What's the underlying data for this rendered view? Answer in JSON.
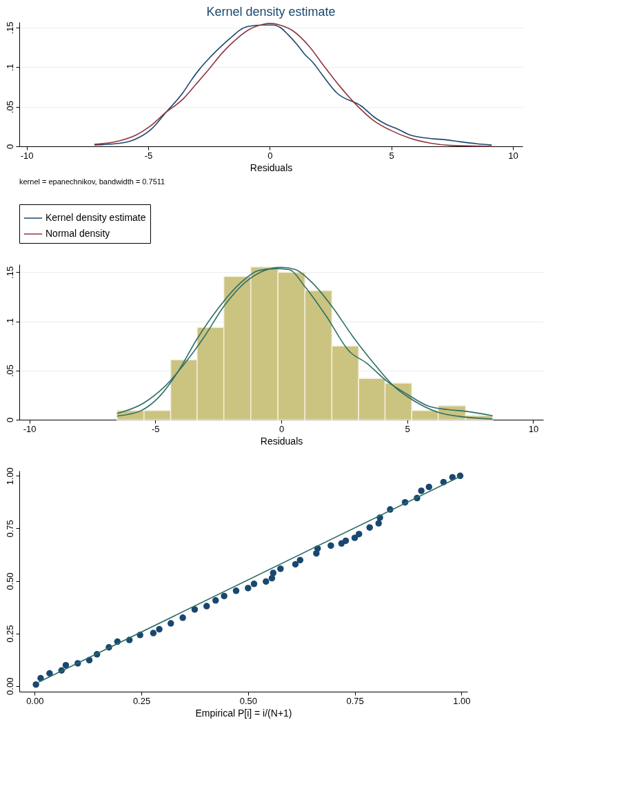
{
  "chart_data": [
    {
      "type": "line",
      "title": "Kernel density estimate",
      "xlabel": "Residuals",
      "xlim": [
        -10.3,
        10.4
      ],
      "ylim": [
        0,
        0.157
      ],
      "xticks": [
        -10,
        -5,
        0,
        5,
        10
      ],
      "yticks": [
        {
          "value": 0,
          "label": "0"
        },
        {
          "value": 0.05,
          "label": ".05"
        },
        {
          "value": 0.1,
          "label": ".1"
        },
        {
          "value": 0.15,
          "label": ".15"
        }
      ],
      "grid": "y",
      "legend": "bottom",
      "annotations": [
        "kernel = epanechnikov, bandwidth = 0.7511"
      ],
      "series": [
        {
          "name": "Kernel density estimate",
          "color": "#1a476f",
          "x": [
            -7.21,
            -6.25,
            -5.91,
            -5.56,
            -4.88,
            -4.26,
            -3.57,
            -3.23,
            -2.88,
            -2.54,
            -1.92,
            -1.51,
            -1.24,
            -0.89,
            -0.27,
            0.14,
            0.44,
            0.76,
            1.1,
            1.44,
            1.79,
            2.13,
            2.75,
            3.78,
            4.33,
            4.81,
            5.29,
            5.77,
            6.18,
            6.73,
            7.14,
            7.83,
            8.52,
            9.13
          ],
          "values": [
            0.0016,
            0.0037,
            0.0053,
            0.0086,
            0.0214,
            0.0432,
            0.0678,
            0.0834,
            0.0978,
            0.1097,
            0.1286,
            0.1397,
            0.1467,
            0.1516,
            0.1533,
            0.1533,
            0.15,
            0.141,
            0.1295,
            0.1163,
            0.1056,
            0.0916,
            0.0678,
            0.0506,
            0.0362,
            0.0275,
            0.0214,
            0.0144,
            0.0115,
            0.0095,
            0.0086,
            0.0058,
            0.0033,
            0.0016
          ]
        },
        {
          "name": "Normal density",
          "color": "#90353b",
          "x": [
            -7.21,
            -6.18,
            -5.49,
            -4.95,
            -4.26,
            -3.57,
            -3.02,
            -2.47,
            -1.92,
            -1.37,
            -0.82,
            -0.27,
            0,
            0.41,
            0.96,
            1.65,
            2.2,
            2.88,
            3.57,
            4.26,
            4.95,
            5.77,
            6.59,
            7.42,
            9.13
          ],
          "values": [
            0.0025,
            0.007,
            0.0144,
            0.0247,
            0.0432,
            0.0596,
            0.0789,
            0.0986,
            0.1192,
            0.1356,
            0.148,
            0.1541,
            0.1554,
            0.1533,
            0.1459,
            0.1254,
            0.1028,
            0.076,
            0.0522,
            0.0329,
            0.0206,
            0.0103,
            0.0041,
            0.0012,
            0.0
          ]
        }
      ]
    },
    {
      "type": "histogram",
      "xlabel": "Residuals",
      "xlim": [
        -10.4,
        10.4
      ],
      "ylim": [
        0,
        0.158
      ],
      "color": "#cbc380",
      "xticks": [
        -10,
        -5,
        0,
        5,
        10
      ],
      "yticks": [
        {
          "value": 0,
          "label": "0"
        },
        {
          "value": 0.05,
          "label": ".05"
        },
        {
          "value": 0.1,
          "label": ".1"
        },
        {
          "value": 0.15,
          "label": ".15"
        }
      ],
      "grid": "y",
      "bins": [
        -6.52,
        -5.45,
        -4.39,
        -3.34,
        -2.28,
        -1.21,
        -0.13,
        0.94,
        2.01,
        3.07,
        4.12,
        5.18,
        6.23,
        7.32,
        8.39
      ],
      "values": [
        0.0093,
        0.0093,
        0.061,
        0.094,
        0.1457,
        0.1553,
        0.15,
        0.1313,
        0.075,
        0.042,
        0.0373,
        0.0093,
        0.0143,
        0.0043
      ],
      "series": [
        {
          "type": "line",
          "color": "#2d6d66",
          "x": [
            -6.52,
            -5.61,
            -4.81,
            -4.13,
            -3.33,
            -2.52,
            -1.58,
            -0.91,
            -0.24,
            0.3,
            0.97,
            1.77,
            2.71,
            3.38,
            4.19,
            4.99,
            5.8,
            6.6,
            7.28,
            8.39
          ],
          "values": [
            0.0037,
            0.0087,
            0.0243,
            0.0477,
            0.0827,
            0.1127,
            0.14,
            0.1517,
            0.1537,
            0.1527,
            0.1343,
            0.106,
            0.0693,
            0.0577,
            0.0393,
            0.026,
            0.0143,
            0.0103,
            0.0087,
            0.004
          ]
        },
        {
          "type": "line",
          "color": "#2d6d66",
          "x": [
            -6.52,
            -5.48,
            -4.67,
            -3.87,
            -3.06,
            -2.26,
            -1.45,
            -0.64,
            0,
            0.56,
            1.23,
            2.04,
            2.85,
            3.66,
            4.46,
            5.26,
            6.2,
            7.28,
            8.39
          ],
          "values": [
            0.0063,
            0.0167,
            0.0327,
            0.056,
            0.0843,
            0.116,
            0.1393,
            0.152,
            0.155,
            0.1527,
            0.1393,
            0.1143,
            0.0843,
            0.0577,
            0.0343,
            0.0193,
            0.0077,
            0.0027,
            0.0007
          ]
        }
      ]
    },
    {
      "type": "scatter",
      "xlabel": "Empirical P[i] = i/(N+1)",
      "xlim": [
        -0.036,
        1.014
      ],
      "ylim": [
        -0.027,
        1.024
      ],
      "xticks": [
        {
          "value": 0,
          "label": "0.00"
        },
        {
          "value": 0.25,
          "label": "0.25"
        },
        {
          "value": 0.5,
          "label": "0.50"
        },
        {
          "value": 0.75,
          "label": "0.75"
        },
        {
          "value": 1,
          "label": "1.00"
        }
      ],
      "yticks": [
        {
          "value": 0,
          "label": "0.00"
        },
        {
          "value": 0.25,
          "label": "0.25"
        },
        {
          "value": 0.5,
          "label": "0.50"
        },
        {
          "value": 0.75,
          "label": "0.75"
        },
        {
          "value": 1,
          "label": "1.00"
        }
      ],
      "series": [
        {
          "type": "scatter",
          "marker": "circle",
          "color": "#1a476f",
          "x": [
            0.003,
            0.014,
            0.035,
            0.063,
            0.073,
            0.101,
            0.128,
            0.146,
            0.174,
            0.194,
            0.222,
            0.247,
            0.278,
            0.292,
            0.319,
            0.347,
            0.375,
            0.403,
            0.424,
            0.444,
            0.472,
            0.5,
            0.514,
            0.542,
            0.556,
            0.559,
            0.576,
            0.611,
            0.622,
            0.66,
            0.663,
            0.694,
            0.719,
            0.729,
            0.75,
            0.76,
            0.785,
            0.806,
            0.809,
            0.833,
            0.868,
            0.896,
            0.906,
            0.924,
            0.958,
            0.979,
            0.997
          ],
          "values": [
            0.007,
            0.037,
            0.06,
            0.074,
            0.099,
            0.108,
            0.123,
            0.151,
            0.184,
            0.211,
            0.219,
            0.243,
            0.252,
            0.27,
            0.298,
            0.325,
            0.364,
            0.38,
            0.407,
            0.428,
            0.453,
            0.466,
            0.486,
            0.497,
            0.513,
            0.538,
            0.558,
            0.579,
            0.599,
            0.631,
            0.654,
            0.668,
            0.678,
            0.691,
            0.705,
            0.723,
            0.754,
            0.774,
            0.801,
            0.84,
            0.874,
            0.894,
            0.929,
            0.947,
            0.97,
            0.993,
            1.0
          ]
        },
        {
          "type": "line",
          "color": "#2d6d66",
          "x": [
            0.01,
            0.997
          ],
          "values": [
            0.019,
            0.997
          ]
        }
      ]
    }
  ]
}
